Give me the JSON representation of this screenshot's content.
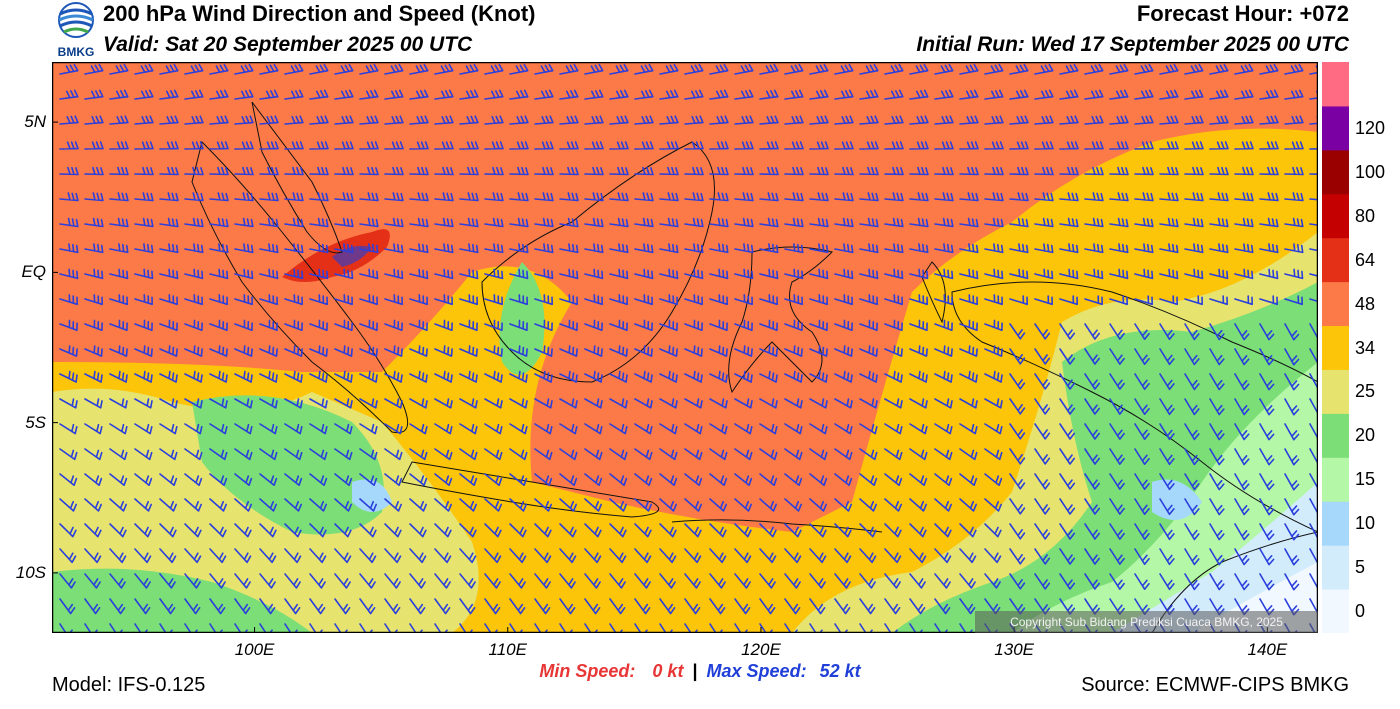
{
  "header": {
    "title": "200 hPa Wind Direction and Speed (Knot)",
    "valid": "Valid: Sat 20 September 2025 00 UTC",
    "forecast_hour": "Forecast Hour: +072",
    "initial_run": "Initial Run: Wed 17 September 2025 00 UTC",
    "logo_text": "BMKG"
  },
  "map": {
    "lat_labels": [
      {
        "label": "5N",
        "lat": 5
      },
      {
        "label": "EQ",
        "lat": 0
      },
      {
        "label": "5S",
        "lat": -5
      },
      {
        "label": "10S",
        "lat": -10
      }
    ],
    "lon_labels": [
      {
        "label": "100E",
        "lon": 100
      },
      {
        "label": "110E",
        "lon": 110
      },
      {
        "label": "120E",
        "lon": 120
      },
      {
        "label": "130E",
        "lon": 130
      },
      {
        "label": "140E",
        "lon": 140
      }
    ],
    "lon_range": [
      92,
      142
    ],
    "lat_range": [
      -12,
      7
    ],
    "barb_color": "#2b3fdc"
  },
  "colorbar": {
    "levels": [
      "0",
      "5",
      "10",
      "15",
      "20",
      "25",
      "34",
      "48",
      "64",
      "80",
      "100",
      "120"
    ],
    "colors": [
      "#f2f8ff",
      "#d2ecfc",
      "#a5d8fb",
      "#b4f7a6",
      "#7bde76",
      "#e6e46e",
      "#fcc50a",
      "#fc7a48",
      "#e53018",
      "#c40000",
      "#9a0000",
      "#7a00a3",
      "#ff6b82"
    ]
  },
  "copyright": "Copyright Sub Bidang Prediksi Cuaca BMKG, 2025",
  "stats": {
    "min_label": "Min Speed:",
    "min_value": "0 kt",
    "separator": "|",
    "max_label": "Max Speed:",
    "max_value": "52 kt"
  },
  "footer": {
    "model": "Model: IFS-0.125",
    "source": "Source: ECMWF-CIPS BMKG"
  }
}
